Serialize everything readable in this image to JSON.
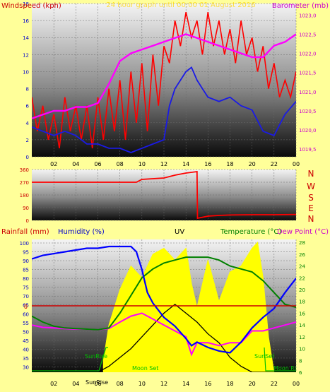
{
  "colors": {
    "background": "#ffff99",
    "wind": "#ff0000",
    "gust_avg": "#1a1ae6",
    "baro": "#ff00ff",
    "dir": "#ff0000",
    "uv": "#ffff00",
    "temperature": "#008000",
    "dewpoint": "#ff00ff",
    "humidity": "#0000ff",
    "solar": "#000000",
    "rain": "#cc0000",
    "title": "#ffd700",
    "sunmoon": "#00c000",
    "axis_blue": "#0000cc",
    "axis_red": "#cc0000",
    "axis_magenta": "#cc00cc",
    "axis_green": "#008000"
  },
  "panel1": {
    "ylabel_left": "Windspeed (kph)",
    "ylabel_right": "Barometer (mb)",
    "title_faded": "24 hour graph until 00:00 01 August 2016"
  },
  "panel2": {
    "compass": [
      "N",
      "W",
      "S",
      "E",
      "N"
    ]
  },
  "panel3": {
    "label_rain": "Rainfall (mm)",
    "label_humidity": "Humidity (%)",
    "label_uv": "UV",
    "label_temp": "Temperature (°C)",
    "label_dew": "Dew Point (°C)",
    "sunrise_label": "SunRise",
    "sunset_label": "SunSet",
    "moonset_label": "Moon Set",
    "moonrise_label": "Moon Rise",
    "sunrise_bottom": "SunRise",
    "zero_label": "0"
  },
  "chart_data": [
    {
      "type": "line",
      "x_ticks": [
        "02",
        "04",
        "06",
        "08",
        "10",
        "12",
        "14",
        "16",
        "18",
        "20",
        "22",
        "00"
      ],
      "xlim": [
        0,
        24
      ],
      "ylim_left": [
        0,
        18
      ],
      "y_ticks_left": [
        0,
        2,
        4,
        6,
        8,
        10,
        12,
        14,
        16,
        18
      ],
      "ylim_right": [
        1019.3,
        1023.3
      ],
      "y_ticks_right": [
        "1019,5",
        "1020,0",
        "1020,5",
        "1021,0",
        "1021,5",
        "1022,0",
        "1022,5",
        "1023,0"
      ],
      "y_ticks_right_values": [
        1019.5,
        1020.0,
        1020.5,
        1021.0,
        1021.5,
        1022.0,
        1022.5,
        1023.0
      ],
      "series": [
        {
          "name": "wind_gust",
          "axis": "left",
          "x": [
            0,
            0.5,
            1,
            1.5,
            2,
            2.5,
            3,
            3.5,
            4,
            4.5,
            5,
            5.5,
            6,
            6.5,
            7,
            7.5,
            8,
            8.5,
            9,
            9.5,
            10,
            10.5,
            11,
            11.5,
            12,
            12.5,
            13,
            13.5,
            14,
            14.5,
            15,
            15.5,
            16,
            16.5,
            17,
            17.5,
            18,
            18.5,
            19,
            19.5,
            20,
            20.5,
            21,
            21.5,
            22,
            22.5,
            23,
            23.5,
            24
          ],
          "y": [
            7,
            3,
            6,
            2,
            5,
            1,
            7,
            3,
            6,
            2,
            6,
            1,
            7,
            2,
            8,
            3,
            9,
            2,
            10,
            4,
            11,
            3,
            12,
            6,
            13,
            11,
            16,
            13,
            17,
            14,
            16,
            12,
            17,
            13,
            16,
            12,
            15,
            11,
            16,
            12,
            14,
            10,
            13,
            8,
            11,
            7,
            9,
            7,
            10
          ]
        },
        {
          "name": "wind_avg",
          "axis": "left",
          "x": [
            0,
            1,
            2,
            3,
            4,
            5,
            6,
            7,
            8,
            9,
            10,
            11,
            12,
            12.5,
            13,
            13.5,
            14,
            14.5,
            15,
            15.5,
            16,
            17,
            18,
            19,
            20,
            21,
            22,
            23,
            24
          ],
          "y": [
            3.5,
            3,
            2.5,
            3,
            2.5,
            1.5,
            1.5,
            1,
            1,
            0.5,
            1,
            1.5,
            2,
            6,
            8,
            9,
            10,
            10.5,
            9,
            8,
            7,
            6.5,
            7,
            6,
            5.5,
            3,
            2.5,
            5,
            6.5
          ]
        },
        {
          "name": "barometer",
          "axis": "right",
          "x": [
            0,
            1,
            2,
            3,
            4,
            5,
            6,
            7,
            8,
            9,
            10,
            11,
            12,
            13,
            14,
            15,
            16,
            17,
            18,
            19,
            20,
            21,
            22,
            23,
            24
          ],
          "y": [
            1020.3,
            1020.4,
            1020.5,
            1020.5,
            1020.6,
            1020.6,
            1020.7,
            1021.2,
            1021.8,
            1022.0,
            1022.1,
            1022.2,
            1022.3,
            1022.4,
            1022.5,
            1022.4,
            1022.3,
            1022.2,
            1022.1,
            1022.0,
            1021.9,
            1021.9,
            1022.2,
            1022.3,
            1022.5
          ]
        }
      ]
    },
    {
      "type": "line",
      "x_ticks": [
        "02",
        "04",
        "06",
        "08",
        "10",
        "12",
        "14",
        "16",
        "18",
        "20",
        "22",
        "00"
      ],
      "xlim": [
        0,
        24
      ],
      "ylim": [
        0,
        360
      ],
      "y_ticks": [
        0,
        90,
        180,
        270,
        360
      ],
      "series": [
        {
          "name": "wind_direction",
          "x": [
            0,
            5,
            9.5,
            10,
            12,
            13,
            14,
            15,
            15.05,
            16,
            17,
            18,
            20,
            22,
            24
          ],
          "y": [
            270,
            270,
            270,
            290,
            300,
            320,
            335,
            345,
            15,
            30,
            35,
            38,
            40,
            40,
            42
          ]
        }
      ]
    },
    {
      "type": "line",
      "x_ticks": [
        "02",
        "04",
        "06",
        "08",
        "10",
        "12",
        "14",
        "16",
        "18",
        "20",
        "22",
        "00"
      ],
      "xlim": [
        0,
        24
      ],
      "ylim_left": [
        27,
        102
      ],
      "y_ticks_left": [
        30,
        35,
        40,
        45,
        50,
        55,
        60,
        65,
        70,
        75,
        80,
        85,
        90,
        95,
        100
      ],
      "ylim_right": [
        6,
        28.5
      ],
      "y_ticks_right": [
        6,
        8,
        10,
        12,
        14,
        16,
        18,
        20,
        22,
        24,
        26,
        28
      ],
      "rainfall_value": 0,
      "series": [
        {
          "name": "uv_area",
          "axis": "right",
          "x": [
            6.5,
            7,
            8,
            9,
            10,
            11,
            12,
            13,
            14,
            14.5,
            15,
            16,
            17,
            18,
            19,
            20,
            20.5,
            21,
            21.5,
            22
          ],
          "y": [
            8,
            14,
            20,
            24,
            22,
            26,
            27,
            25,
            27,
            21,
            17,
            25,
            18,
            23,
            24,
            27,
            28,
            22,
            12,
            6
          ]
        },
        {
          "name": "humidity",
          "axis": "left",
          "x": [
            0,
            1,
            2,
            3,
            4,
            5,
            6,
            7,
            8,
            9,
            9.5,
            10,
            10.5,
            11,
            12,
            13,
            14,
            14.5,
            15,
            16,
            17,
            18,
            19,
            20,
            21,
            22,
            23,
            24
          ],
          "y": [
            91,
            93,
            94,
            95,
            96,
            97,
            97,
            98,
            98,
            98,
            95,
            85,
            72,
            66,
            58,
            53,
            46,
            42,
            44,
            41,
            39,
            38,
            44,
            52,
            58,
            63,
            72,
            80
          ]
        },
        {
          "name": "temperature",
          "axis": "right",
          "x": [
            0,
            1,
            2,
            3,
            4,
            5,
            6,
            7,
            8,
            9,
            10,
            11,
            12,
            13,
            14,
            15,
            16,
            17,
            18,
            19,
            20,
            21,
            22,
            23,
            24
          ],
          "y": [
            15.5,
            14.5,
            13.8,
            13.5,
            13.4,
            13.3,
            13.2,
            13.5,
            16,
            19,
            22,
            23.5,
            24.5,
            25,
            25.5,
            25.5,
            25.5,
            25,
            24,
            23.5,
            23,
            21.5,
            19.5,
            17.5,
            17
          ]
        },
        {
          "name": "dewpoint",
          "axis": "right",
          "x": [
            0,
            1,
            2,
            3,
            4,
            5,
            6,
            7,
            8,
            9,
            10,
            11,
            12,
            13,
            14,
            14.5,
            15,
            16,
            17,
            18,
            19,
            20,
            21,
            22,
            23,
            24
          ],
          "y": [
            14,
            13.6,
            13.5,
            13.4,
            13.3,
            13.3,
            13.2,
            13.4,
            14.5,
            15.5,
            16,
            15,
            14,
            13,
            12,
            9,
            11,
            11,
            10.5,
            11,
            11,
            13,
            13,
            13.5,
            14,
            14.5
          ]
        },
        {
          "name": "solar",
          "axis": "right",
          "x": [
            0,
            5,
            6,
            7,
            8,
            9,
            10,
            11,
            12,
            13,
            14,
            15,
            16,
            17,
            18,
            19,
            20,
            21,
            22,
            23,
            24
          ],
          "y": [
            6,
            6,
            6,
            7,
            8.5,
            10,
            12,
            14,
            16,
            17.5,
            16,
            14.5,
            12.5,
            11,
            8.5,
            7,
            6,
            6,
            6,
            6,
            6
          ]
        }
      ]
    }
  ]
}
